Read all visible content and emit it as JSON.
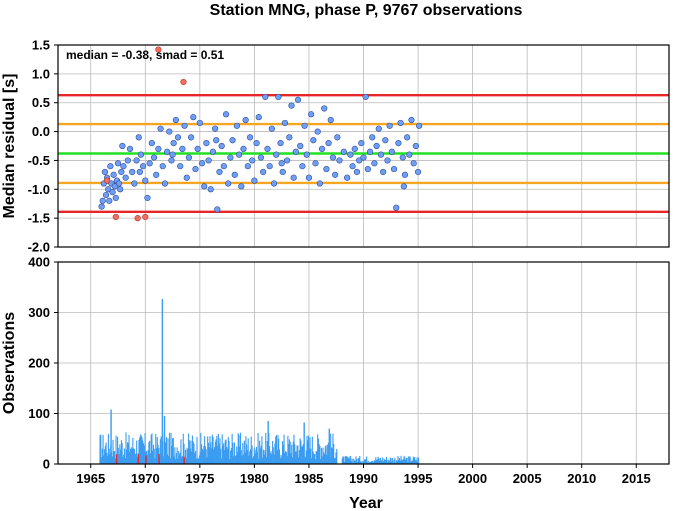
{
  "title": "Station MNG, phase P, 9767 observations",
  "chart_data": [
    {
      "type": "scatter",
      "ylabel": "Median residual [s]",
      "annotation": "median = -0.38, smad = 0.51",
      "xlim": [
        1962,
        2018
      ],
      "ylim": [
        -2.0,
        1.5
      ],
      "yticks": [
        "-2.0",
        "-1.5",
        "-1.0",
        "-0.5",
        "0.0",
        "0.5",
        "1.0",
        "1.5"
      ],
      "grid": true,
      "reference_lines": [
        {
          "y": 0.63,
          "color": "#e8262a"
        },
        {
          "y": 0.13,
          "color": "#f5a623"
        },
        {
          "y": -0.38,
          "color": "#22e022"
        },
        {
          "y": -0.89,
          "color": "#f5a623"
        },
        {
          "y": -1.39,
          "color": "#e8262a"
        }
      ],
      "colors": {
        "normal": "#6f9ff5",
        "outlier": "#f86a5e",
        "edge": "#2b4a9a"
      },
      "series": [
        {
          "values": [
            [
              1966.0,
              -1.3
            ],
            [
              1966.1,
              -1.2
            ],
            [
              1966.2,
              -0.9
            ],
            [
              1966.3,
              -0.7
            ],
            [
              1966.4,
              -1.1
            ],
            [
              1966.5,
              -0.8
            ],
            [
              1966.6,
              -1.0
            ],
            [
              1966.7,
              -1.2
            ],
            [
              1966.8,
              -0.6
            ],
            [
              1966.9,
              -0.9
            ],
            [
              1967.0,
              -1.05
            ],
            [
              1967.1,
              -0.75
            ],
            [
              1967.2,
              -0.95
            ],
            [
              1967.3,
              -1.15
            ],
            [
              1967.4,
              -0.85
            ],
            [
              1967.5,
              -0.55
            ],
            [
              1967.6,
              -0.9
            ],
            [
              1967.7,
              -1.0
            ],
            [
              1967.8,
              -0.7
            ],
            [
              1967.9,
              -0.25
            ],
            [
              1968.0,
              -0.6
            ],
            [
              1968.2,
              -0.8
            ],
            [
              1968.4,
              -0.5
            ],
            [
              1968.6,
              -0.3
            ],
            [
              1968.8,
              -0.7
            ],
            [
              1969.0,
              -0.9
            ],
            [
              1969.2,
              -0.5
            ],
            [
              1969.4,
              -0.1
            ],
            [
              1969.6,
              -0.4
            ],
            [
              1969.8,
              -0.6
            ],
            [
              1970.0,
              -0.85
            ],
            [
              1970.2,
              -1.15
            ],
            [
              1970.4,
              -0.55
            ],
            [
              1970.6,
              -0.2
            ],
            [
              1970.8,
              -0.45
            ],
            [
              1971.0,
              -0.75
            ],
            [
              1971.2,
              -0.3
            ],
            [
              1971.4,
              0.05
            ],
            [
              1971.6,
              -0.6
            ],
            [
              1971.8,
              -0.9
            ],
            [
              1972.0,
              -0.35
            ],
            [
              1972.2,
              0.0
            ],
            [
              1972.4,
              -0.5
            ],
            [
              1972.6,
              -0.2
            ],
            [
              1972.8,
              0.2
            ],
            [
              1973.0,
              -0.1
            ],
            [
              1973.2,
              -0.6
            ],
            [
              1973.4,
              -0.3
            ],
            [
              1973.6,
              0.1
            ],
            [
              1973.8,
              -0.8
            ],
            [
              1974.0,
              -0.45
            ],
            [
              1974.2,
              -0.1
            ],
            [
              1974.4,
              0.25
            ],
            [
              1974.6,
              -0.65
            ],
            [
              1974.8,
              -0.3
            ],
            [
              1975.0,
              0.15
            ],
            [
              1975.2,
              -0.55
            ],
            [
              1975.4,
              -0.95
            ],
            [
              1975.6,
              -0.2
            ],
            [
              1975.8,
              -0.5
            ],
            [
              1976.0,
              -1.0
            ],
            [
              1976.2,
              -0.35
            ],
            [
              1976.4,
              0.05
            ],
            [
              1976.6,
              -1.35
            ],
            [
              1976.8,
              -0.7
            ],
            [
              1977.0,
              -0.25
            ],
            [
              1977.2,
              -0.6
            ],
            [
              1977.4,
              0.3
            ],
            [
              1977.6,
              -0.9
            ],
            [
              1977.8,
              -0.45
            ],
            [
              1978.0,
              -0.15
            ],
            [
              1978.2,
              -0.75
            ],
            [
              1978.4,
              0.1
            ],
            [
              1978.6,
              -0.4
            ],
            [
              1978.8,
              -0.95
            ],
            [
              1979.0,
              -0.3
            ],
            [
              1979.2,
              0.2
            ],
            [
              1979.4,
              -0.6
            ],
            [
              1979.6,
              -0.1
            ],
            [
              1979.8,
              -0.5
            ],
            [
              1980.0,
              -0.85
            ],
            [
              1980.2,
              -0.2
            ],
            [
              1980.4,
              0.25
            ],
            [
              1980.6,
              -0.45
            ],
            [
              1980.8,
              -0.7
            ],
            [
              1981.0,
              0.6
            ],
            [
              1981.2,
              -0.3
            ],
            [
              1981.4,
              -0.6
            ],
            [
              1981.6,
              0.05
            ],
            [
              1981.8,
              -0.9
            ],
            [
              1982.0,
              -0.4
            ],
            [
              1982.2,
              0.6
            ],
            [
              1982.4,
              -0.2
            ],
            [
              1982.6,
              -0.7
            ],
            [
              1982.8,
              0.15
            ],
            [
              1983.0,
              -0.5
            ],
            [
              1983.2,
              -0.1
            ],
            [
              1983.4,
              0.45
            ],
            [
              1983.6,
              -0.8
            ],
            [
              1983.8,
              -0.35
            ],
            [
              1984.0,
              0.55
            ],
            [
              1984.2,
              -0.25
            ],
            [
              1984.4,
              -0.6
            ],
            [
              1984.6,
              0.1
            ],
            [
              1984.8,
              -0.4
            ],
            [
              1985.0,
              -0.8
            ],
            [
              1985.2,
              0.3
            ],
            [
              1985.4,
              -0.15
            ],
            [
              1985.6,
              -0.55
            ],
            [
              1985.8,
              0.0
            ],
            [
              1986.0,
              -0.9
            ],
            [
              1986.2,
              -0.3
            ],
            [
              1986.4,
              0.4
            ],
            [
              1986.6,
              -0.65
            ],
            [
              1986.8,
              -0.2
            ],
            [
              1987.0,
              0.2
            ],
            [
              1987.2,
              -0.45
            ],
            [
              1987.4,
              -0.75
            ],
            [
              1987.6,
              -0.1
            ],
            [
              1987.8,
              -0.5
            ],
            [
              1988.5,
              -0.8
            ],
            [
              1988.8,
              -0.4
            ],
            [
              1989.0,
              -0.6
            ],
            [
              1989.2,
              -0.3
            ],
            [
              1989.4,
              -0.7
            ],
            [
              1989.6,
              -0.5
            ],
            [
              1989.8,
              -0.2
            ],
            [
              1990.0,
              -0.45
            ],
            [
              1990.2,
              0.6
            ],
            [
              1990.4,
              -0.65
            ],
            [
              1990.6,
              -0.35
            ],
            [
              1990.8,
              -0.1
            ],
            [
              1991.0,
              -0.55
            ],
            [
              1991.2,
              -0.25
            ],
            [
              1991.4,
              0.05
            ],
            [
              1991.6,
              -0.4
            ],
            [
              1991.8,
              -0.7
            ],
            [
              1992.0,
              -0.15
            ],
            [
              1992.2,
              -0.5
            ],
            [
              1992.4,
              0.1
            ],
            [
              1992.6,
              -0.35
            ],
            [
              1992.8,
              -0.65
            ],
            [
              1993.0,
              -1.32
            ],
            [
              1993.2,
              -0.2
            ],
            [
              1993.4,
              0.15
            ],
            [
              1993.6,
              -0.45
            ],
            [
              1993.8,
              -0.75
            ],
            [
              1994.0,
              -0.1
            ],
            [
              1994.2,
              -0.4
            ],
            [
              1994.4,
              0.2
            ],
            [
              1994.6,
              -0.55
            ],
            [
              1994.8,
              -0.25
            ],
            [
              1995.0,
              -0.7
            ],
            [
              1995.1,
              0.1
            ],
            [
              1993.7,
              -0.95
            ],
            [
              1969.5,
              -0.7
            ],
            [
              1972.5,
              -0.4
            ],
            [
              1976.5,
              -0.15
            ],
            [
              1982.5,
              -0.55
            ],
            [
              1988.2,
              -0.35
            ]
          ]
        },
        {
          "values": [
            [
              1971.2,
              1.42
            ],
            [
              1973.5,
              0.86
            ],
            [
              1967.3,
              -1.48
            ],
            [
              1969.3,
              -1.5
            ],
            [
              1970.0,
              -1.48
            ],
            [
              1966.5,
              -0.85
            ]
          ]
        }
      ]
    },
    {
      "type": "bar",
      "xlabel": "Year",
      "ylabel": "Observations",
      "xlim": [
        1962,
        2018
      ],
      "ylim": [
        0,
        400
      ],
      "xticks": [
        "1965",
        "1970",
        "1975",
        "1980",
        "1985",
        "1990",
        "1995",
        "2000",
        "2005",
        "2010",
        "2015"
      ],
      "yticks": [
        "0",
        "100",
        "200",
        "300",
        "400"
      ],
      "grid": true,
      "colors": {
        "bar": "#3b9cf0",
        "highlight": "#e8262a"
      },
      "peaks": [
        [
          1966.8,
          108
        ],
        [
          1971.5,
          327
        ],
        [
          1971.7,
          95
        ],
        [
          1981.2,
          85
        ],
        [
          1984.5,
          82
        ],
        [
          1986.8,
          70
        ]
      ],
      "segments": [
        {
          "from": 1965.8,
          "to": 1987.5,
          "level": 38
        },
        {
          "from": 1988.0,
          "to": 1995.0,
          "level": 10
        }
      ],
      "highlights": [
        1967.3,
        1969.3,
        1970.0,
        1971.2,
        1973.5
      ]
    }
  ]
}
